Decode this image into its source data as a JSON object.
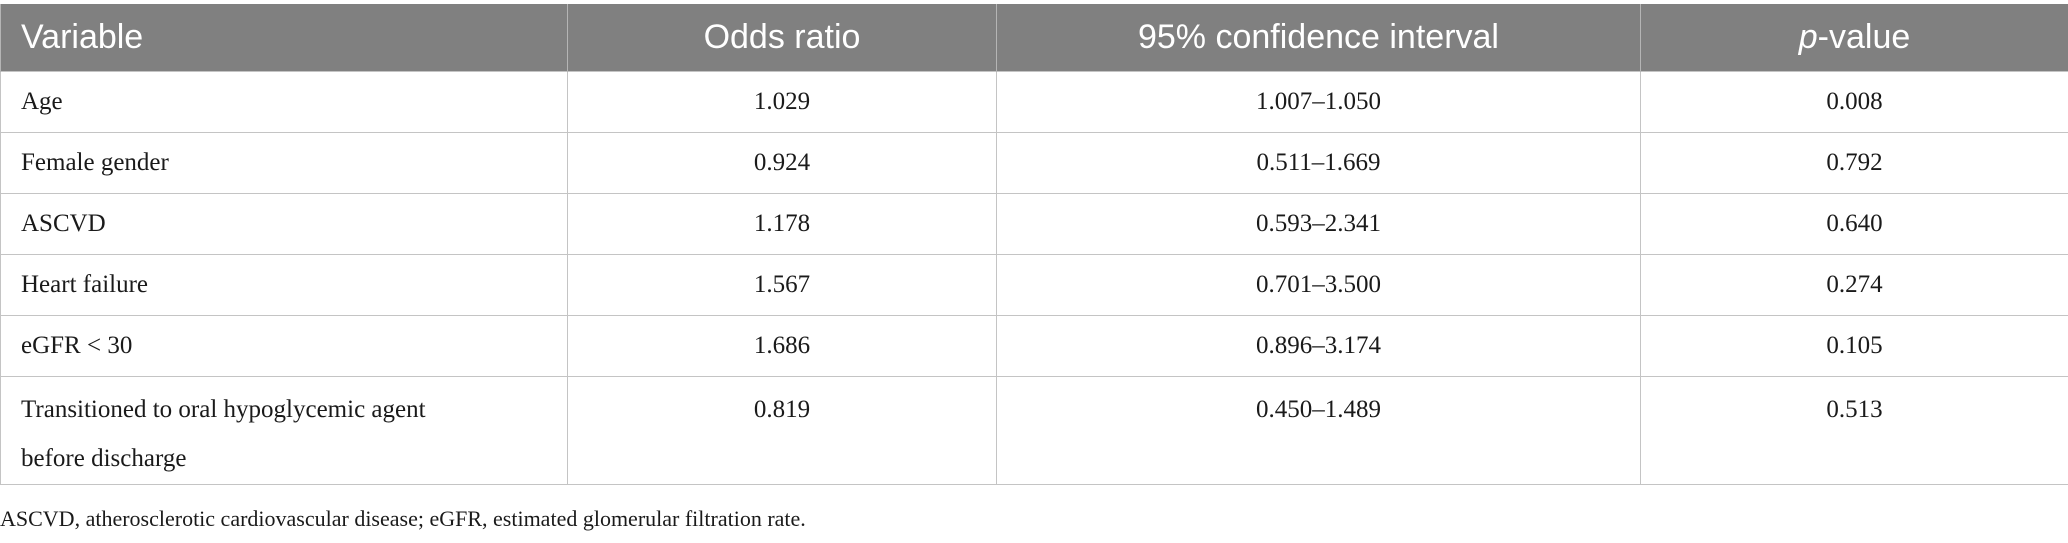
{
  "table": {
    "headers": {
      "variable": "Variable",
      "odds_ratio": "Odds ratio",
      "ci": "95% confidence interval",
      "p_italic": "p",
      "p_rest": "-value"
    },
    "rows": [
      {
        "variable": "Age",
        "odds_ratio": "1.029",
        "ci": "1.007–1.050",
        "p": "0.008"
      },
      {
        "variable": "Female gender",
        "odds_ratio": "0.924",
        "ci": "0.511–1.669",
        "p": "0.792"
      },
      {
        "variable": "ASCVD",
        "odds_ratio": "1.178",
        "ci": "0.593–2.341",
        "p": "0.640"
      },
      {
        "variable": "Heart failure",
        "odds_ratio": "1.567",
        "ci": "0.701–3.500",
        "p": "0.274"
      },
      {
        "variable": "eGFR < 30",
        "odds_ratio": "1.686",
        "ci": "0.896–3.174",
        "p": "0.105"
      },
      {
        "variable_line1": "Transitioned to oral hypoglycemic agent",
        "variable_line2": "before discharge",
        "odds_ratio": "0.819",
        "ci": "0.450–1.489",
        "p": "0.513"
      }
    ]
  },
  "footnote": "ASCVD, atherosclerotic cardiovascular disease; eGFR, estimated glomerular filtration rate."
}
